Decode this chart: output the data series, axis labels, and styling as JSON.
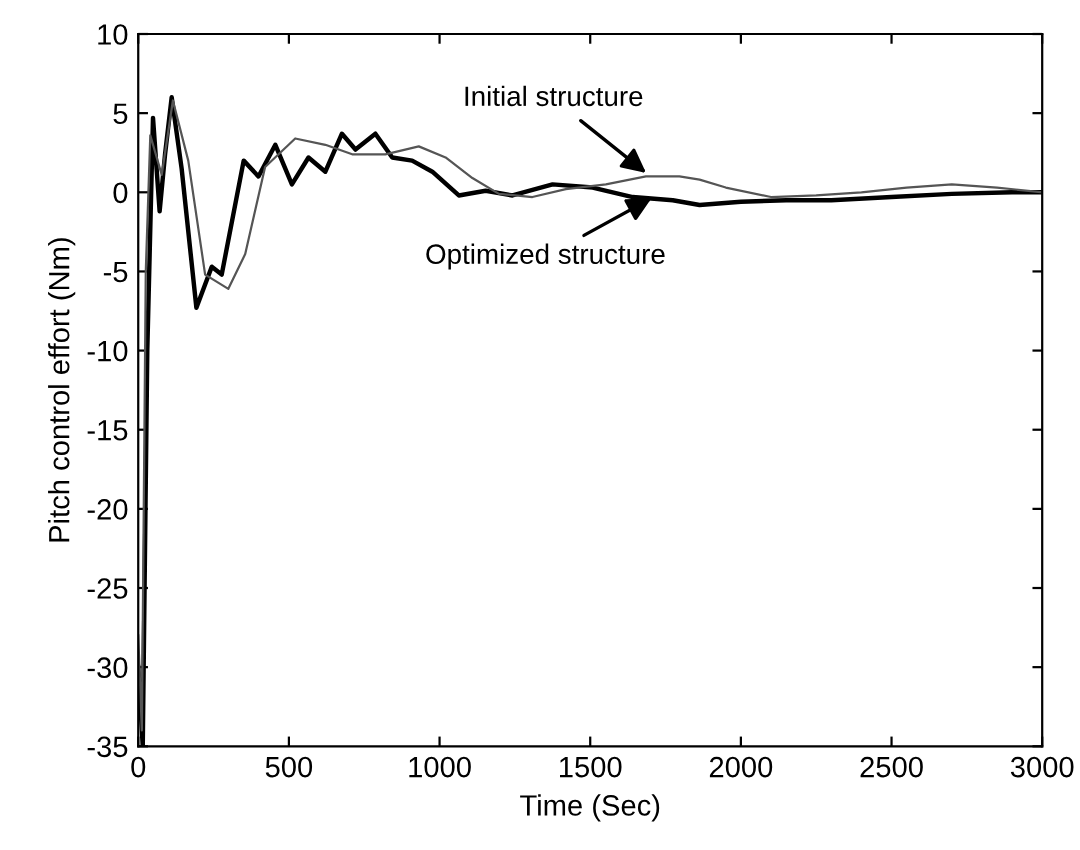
{
  "chart_data": {
    "type": "line",
    "xlabel": "Time (Sec)",
    "ylabel": "Pitch control effort (Nm)",
    "xlim": [
      0,
      3000
    ],
    "ylim": [
      -35,
      10
    ],
    "xticks": [
      0,
      500,
      1000,
      1500,
      2000,
      2500,
      3000
    ],
    "yticks": [
      -35,
      -30,
      -25,
      -20,
      -15,
      -10,
      -5,
      0,
      5,
      10
    ],
    "grid": false,
    "legend": false,
    "marker": "none",
    "series": [
      {
        "color": "#000000",
        "line_style": "solid",
        "x": [
          0,
          15,
          30,
          49,
          71,
          89,
          111,
          144,
          193,
          244,
          277,
          350,
          399,
          455,
          510,
          565,
          621,
          676,
          721,
          787,
          843,
          909,
          976,
          1064,
          1153,
          1242,
          1375,
          1508,
          1641,
          1774,
          1863,
          2000,
          2150,
          2300,
          2500,
          2700,
          2900,
          3000
        ],
        "values": [
          -30,
          -35,
          -10,
          4.7,
          -1.2,
          2.4,
          6,
          1.5,
          -7.3,
          -4.7,
          -5.2,
          2,
          1,
          3,
          0.5,
          2.2,
          1.3,
          3.7,
          2.7,
          3.7,
          2.2,
          2,
          1.3,
          -0.2,
          0.1,
          -0.2,
          0.5,
          0.3,
          -0.3,
          -0.5,
          -0.8,
          -0.6,
          -0.5,
          -0.5,
          -0.3,
          -0.1,
          0,
          0
        ]
      },
      {
        "color": "#555555",
        "line_style": "solid",
        "x": [
          0,
          12,
          25,
          40,
          78,
          115,
          166,
          222,
          299,
          355,
          421,
          521,
          621,
          710,
          820,
          931,
          1020,
          1109,
          1197,
          1308,
          1419,
          1552,
          1685,
          1796,
          1863,
          1950,
          2100,
          2250,
          2400,
          2550,
          2700,
          2850,
          3000
        ],
        "values": [
          -28,
          -34,
          -5,
          3.6,
          1.1,
          5.8,
          2,
          -5.2,
          -6.1,
          -3.9,
          1.6,
          3.4,
          3,
          2.4,
          2.4,
          2.9,
          2.2,
          0.9,
          -0.1,
          -0.3,
          0.2,
          0.5,
          1,
          1,
          0.8,
          0.3,
          -0.3,
          -0.2,
          0,
          0.3,
          0.5,
          0.3,
          0
        ]
      }
    ],
    "annotations": [
      {
        "text": "Initial structure",
        "x": 1700,
        "y": 1
      },
      {
        "text": "Optimized structure",
        "x": 1720,
        "y": -0.2
      }
    ]
  }
}
